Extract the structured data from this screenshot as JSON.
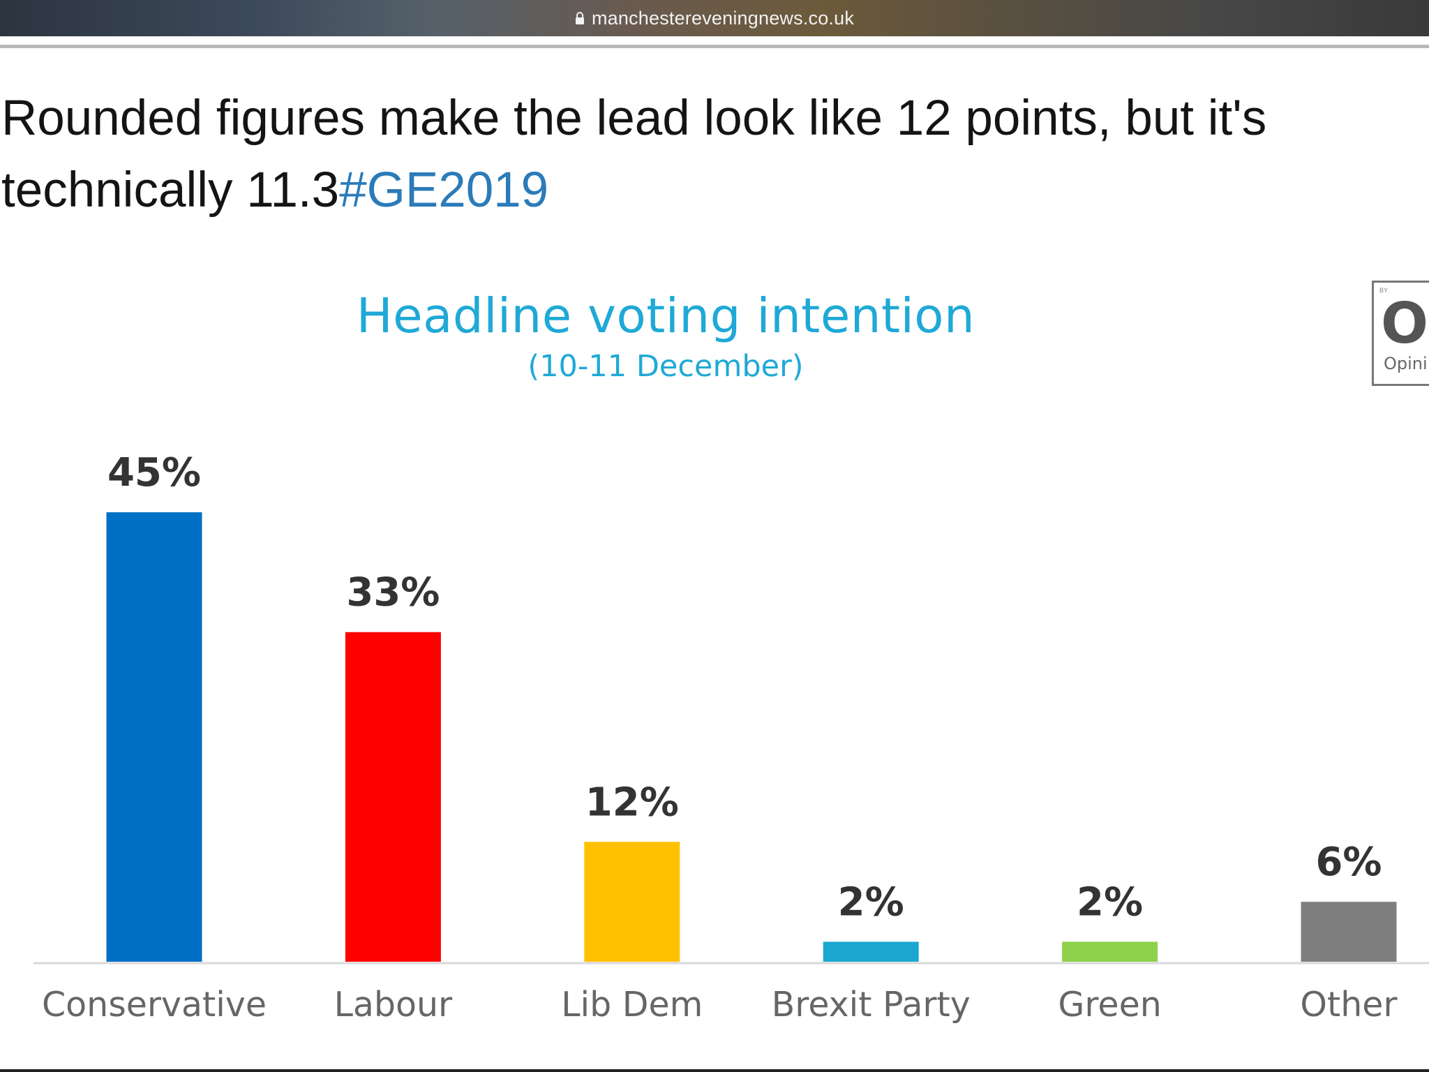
{
  "browser": {
    "url": "manchestereveningnews.co.uk"
  },
  "tweet": {
    "text": "Rounded figures make the lead look like 12 points, but it's technically 11.3",
    "hashtag": "#GE2019"
  },
  "logo": {
    "by": "BY",
    "mark": "O",
    "word": "Opini"
  },
  "chart_data": {
    "type": "bar",
    "title": "Headline voting intention",
    "subtitle": "(10-11 December)",
    "categories": [
      "Conservative",
      "Labour",
      "Lib Dem",
      "Brexit Party",
      "Green",
      "Other"
    ],
    "values": [
      45,
      33,
      12,
      2,
      2,
      6
    ],
    "value_labels": [
      "45%",
      "33%",
      "12%",
      "2%",
      "2%",
      "6%"
    ],
    "colors": [
      "#0070c6",
      "#ff0000",
      "#ffc000",
      "#1ba8d0",
      "#8ed14a",
      "#7f7f7f"
    ],
    "ylim": [
      0,
      45
    ],
    "grid": false,
    "legend": "none"
  }
}
